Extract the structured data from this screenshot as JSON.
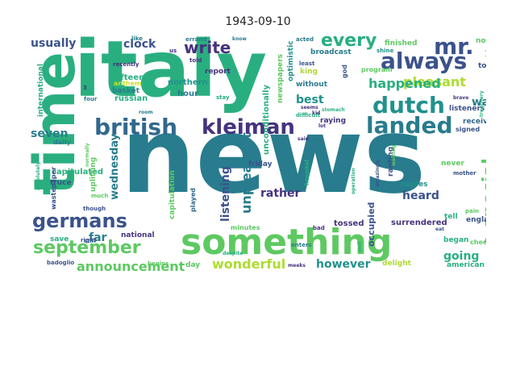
{
  "figure": {
    "title": "1943-09-10"
  },
  "palette": {
    "dark_purple": "#45337d",
    "indigo": "#3b528b",
    "blue": "#31688e",
    "teal": "#287c8e",
    "teal_green": "#21918c",
    "green": "#29af7f",
    "light_green": "#5ec962",
    "lime": "#addc30",
    "yellow": "#cde11d"
  },
  "words": [
    {
      "text": "news",
      "color": "#287c8e"
    },
    {
      "text": "italy",
      "color": "#29af7f"
    },
    {
      "text": "time",
      "color": "#29af7f"
    },
    {
      "text": "something",
      "color": "#5ec962"
    },
    {
      "text": "kleiman",
      "color": "#45337d"
    },
    {
      "text": "dutch",
      "color": "#21918c"
    },
    {
      "text": "british",
      "color": "#31688e"
    },
    {
      "text": "landed",
      "color": "#287c8e"
    },
    {
      "text": "always",
      "color": "#3b528b"
    },
    {
      "text": "germans",
      "color": "#3b528b"
    },
    {
      "text": "mr.",
      "color": "#3b528b"
    },
    {
      "text": "every",
      "color": "#29af7f"
    },
    {
      "text": "september",
      "color": "#5ec962"
    },
    {
      "text": "special",
      "color": "#5ec962"
    },
    {
      "text": "write",
      "color": "#45337d"
    },
    {
      "text": "pleasant",
      "color": "#addc30"
    },
    {
      "text": "announcement",
      "color": "#5ec962"
    },
    {
      "text": "unpleasant",
      "color": "#287c8e"
    },
    {
      "text": "listening",
      "color": "#3b528b"
    },
    {
      "text": "happened",
      "color": "#29af7f"
    },
    {
      "text": "wonderful",
      "color": "#addc30"
    },
    {
      "text": "usually",
      "color": "#3b528b"
    },
    {
      "text": "clock",
      "color": "#3b528b"
    },
    {
      "text": "going",
      "color": "#29af7f"
    },
    {
      "text": "however",
      "color": "#21918c"
    },
    {
      "text": "rather",
      "color": "#45337d"
    },
    {
      "text": "heard",
      "color": "#3b528b"
    },
    {
      "text": "seven",
      "color": "#287c8e"
    },
    {
      "text": "wednesday",
      "color": "#287c8e"
    },
    {
      "text": "far",
      "color": "#287c8e"
    },
    {
      "text": "best",
      "color": "#21918c"
    },
    {
      "text": "war",
      "color": "#287c8e"
    },
    {
      "text": "8",
      "color": "#29af7f"
    },
    {
      "text": "occupied",
      "color": "#3b528b"
    },
    {
      "text": "surrendered",
      "color": "#45337d"
    },
    {
      "text": "tossed",
      "color": "#45337d"
    },
    {
      "text": "capitulated",
      "color": "#29af7f"
    },
    {
      "text": "fifteen",
      "color": "#29af7f"
    },
    {
      "text": "northern",
      "color": "#21918c"
    },
    {
      "text": "russian",
      "color": "#29af7f"
    },
    {
      "text": "basket",
      "color": "#287c8e"
    },
    {
      "text": "hour",
      "color": "#287c8e"
    },
    {
      "text": "report",
      "color": "#45337d"
    },
    {
      "text": "broadcast",
      "color": "#287c8e"
    },
    {
      "text": "finished",
      "color": "#5ec962"
    },
    {
      "text": "notes",
      "color": "#5ec962"
    },
    {
      "text": "today",
      "color": "#3b528b"
    },
    {
      "text": "program",
      "color": "#5ec962"
    },
    {
      "text": "listeners",
      "color": "#3b528b"
    },
    {
      "text": "received",
      "color": "#31688e"
    },
    {
      "text": "signed",
      "color": "#3b528b"
    },
    {
      "text": "ranting",
      "color": "#3b528b"
    },
    {
      "text": "raying",
      "color": "#45337d"
    },
    {
      "text": "naples",
      "color": "#21918c"
    },
    {
      "text": "never",
      "color": "#5ec962"
    },
    {
      "text": "tell",
      "color": "#29af7f"
    },
    {
      "text": "england",
      "color": "#3b528b"
    },
    {
      "text": "ago",
      "color": "#3b528b"
    },
    {
      "text": "began",
      "color": "#29af7f"
    },
    {
      "text": "cheerful",
      "color": "#5ec962"
    },
    {
      "text": "delight",
      "color": "#addc30"
    },
    {
      "text": "american",
      "color": "#29af7f"
    },
    {
      "text": "friday",
      "color": "#3b528b"
    },
    {
      "text": "played",
      "color": "#31688e"
    },
    {
      "text": "capitulation",
      "color": "#5ec962"
    },
    {
      "text": "national",
      "color": "#45337d"
    },
    {
      "text": "minutes",
      "color": "#5ec962"
    },
    {
      "text": "uplifting",
      "color": "#5ec962"
    },
    {
      "text": "truce",
      "color": "#3b528b"
    },
    {
      "text": "wastepaper",
      "color": "#3b528b"
    },
    {
      "text": "save",
      "color": "#29af7f"
    },
    {
      "text": "day",
      "color": "#5ec962"
    },
    {
      "text": "badoglio",
      "color": "#3b528b"
    },
    {
      "text": "international",
      "color": "#29af7f"
    },
    {
      "text": "daily",
      "color": "#287c8e"
    },
    {
      "text": "anthem",
      "color": "#cde11d"
    },
    {
      "text": "king",
      "color": "#addc30"
    },
    {
      "text": "least",
      "color": "#3b528b"
    },
    {
      "text": "without",
      "color": "#287c8e"
    },
    {
      "text": "unconditionally",
      "color": "#29af7f"
    },
    {
      "text": "newspapers",
      "color": "#5ec962"
    },
    {
      "text": "optimistic",
      "color": "#21918c"
    },
    {
      "text": "like",
      "color": "#287c8e"
    },
    {
      "text": "errand",
      "color": "#287c8e"
    },
    {
      "text": "recently",
      "color": "#45337d"
    },
    {
      "text": "told",
      "color": "#45337d"
    },
    {
      "text": "acted",
      "color": "#287c8e"
    },
    {
      "text": "shine",
      "color": "#21918c"
    },
    {
      "text": "god",
      "color": "#3b528b"
    },
    {
      "text": "sick",
      "color": "#5ec962"
    },
    {
      "text": "brave",
      "color": "#45337d"
    },
    {
      "text": "pain",
      "color": "#5ec962"
    },
    {
      "text": "mother",
      "color": "#3b528b"
    },
    {
      "text": "bad",
      "color": "#45337d"
    },
    {
      "text": "enters",
      "color": "#287c8e"
    },
    {
      "text": "begins",
      "color": "#5ec962"
    },
    {
      "text": "meeks",
      "color": "#45337d"
    },
    {
      "text": "still",
      "color": "#287c8e"
    },
    {
      "text": "though",
      "color": "#3b528b"
    },
    {
      "text": "right",
      "color": "#3b528b"
    },
    {
      "text": "much",
      "color": "#5ec962"
    },
    {
      "text": "four",
      "color": "#287c8e"
    },
    {
      "text": "3",
      "color": "#45337d"
    },
    {
      "text": "stay",
      "color": "#29af7f"
    },
    {
      "text": "us",
      "color": "#45337d"
    },
    {
      "text": "know",
      "color": "#287c8e"
    },
    {
      "text": "seems",
      "color": "#45337d"
    },
    {
      "text": "difficult",
      "color": "#29af7f"
    },
    {
      "text": "said",
      "color": "#45337d"
    },
    {
      "text": "room",
      "color": "#287c8e"
    },
    {
      "text": "stomach",
      "color": "#29af7f"
    },
    {
      "text": "hospital",
      "color": "#29af7f"
    },
    {
      "text": "eight-fifteen",
      "color": "#addc30"
    },
    {
      "text": "good-bye",
      "color": "#287c8e"
    },
    {
      "text": "treachery",
      "color": "#29af7f"
    },
    {
      "text": "amazingly",
      "color": "#3b528b"
    },
    {
      "text": "operation",
      "color": "#29af7f"
    },
    {
      "text": "eat",
      "color": "#3b528b"
    },
    {
      "text": "kid",
      "color": "#45337d"
    },
    {
      "text": "lot",
      "color": "#45337d"
    },
    {
      "text": "well",
      "color": "#29af7f"
    },
    {
      "text": "normally",
      "color": "#5ec962"
    },
    {
      "text": "absolutely",
      "color": "#29af7f"
    },
    {
      "text": "walking",
      "color": "#5ec962"
    },
    {
      "text": "despite",
      "color": "#29af7f"
    }
  ]
}
